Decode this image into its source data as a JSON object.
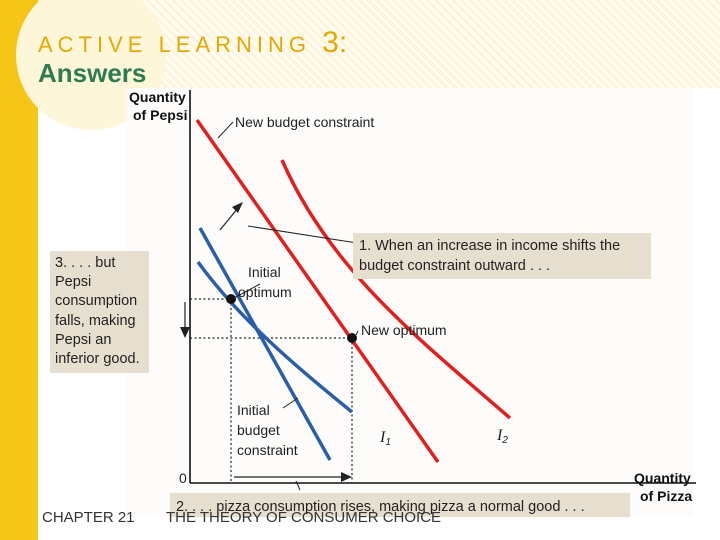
{
  "header": {
    "title": "ACTIVE LEARNING",
    "number": "3:",
    "subtitle": "Answers"
  },
  "diagram": {
    "y_axis_label": [
      "Quantity",
      "of Pepsi"
    ],
    "x_axis_label": [
      "Quantity",
      "of Pizza"
    ],
    "origin": "0",
    "new_budget_label": "New budget constraint",
    "initial_optimum_label": [
      "Initial",
      "optimum"
    ],
    "new_optimum_label": "New optimum",
    "initial_budget_label": [
      "Initial",
      "budget",
      "constraint"
    ],
    "curve_i1": "I",
    "curve_i1_sub": "1",
    "curve_i2": "I",
    "curve_i2_sub": "2",
    "note1": [
      "1. When an increase in income shifts the",
      "budget constraint outward . . ."
    ],
    "note2": "2. . . . pizza consumption rises, making pizza a normal good . . .",
    "note3": [
      "3. . . . but",
      "Pepsi",
      "consumption",
      "falls, making",
      "Pepsi an",
      "inferior good."
    ],
    "colors": {
      "budget_lines": "#e02020",
      "indifference_curves": "#2a5ea8",
      "note_box": "#e6dfcf"
    }
  },
  "footer": {
    "chapter": "CHAPTER 21",
    "chapter_title": "THE THEORY OF CONSUMER CHOICE"
  }
}
